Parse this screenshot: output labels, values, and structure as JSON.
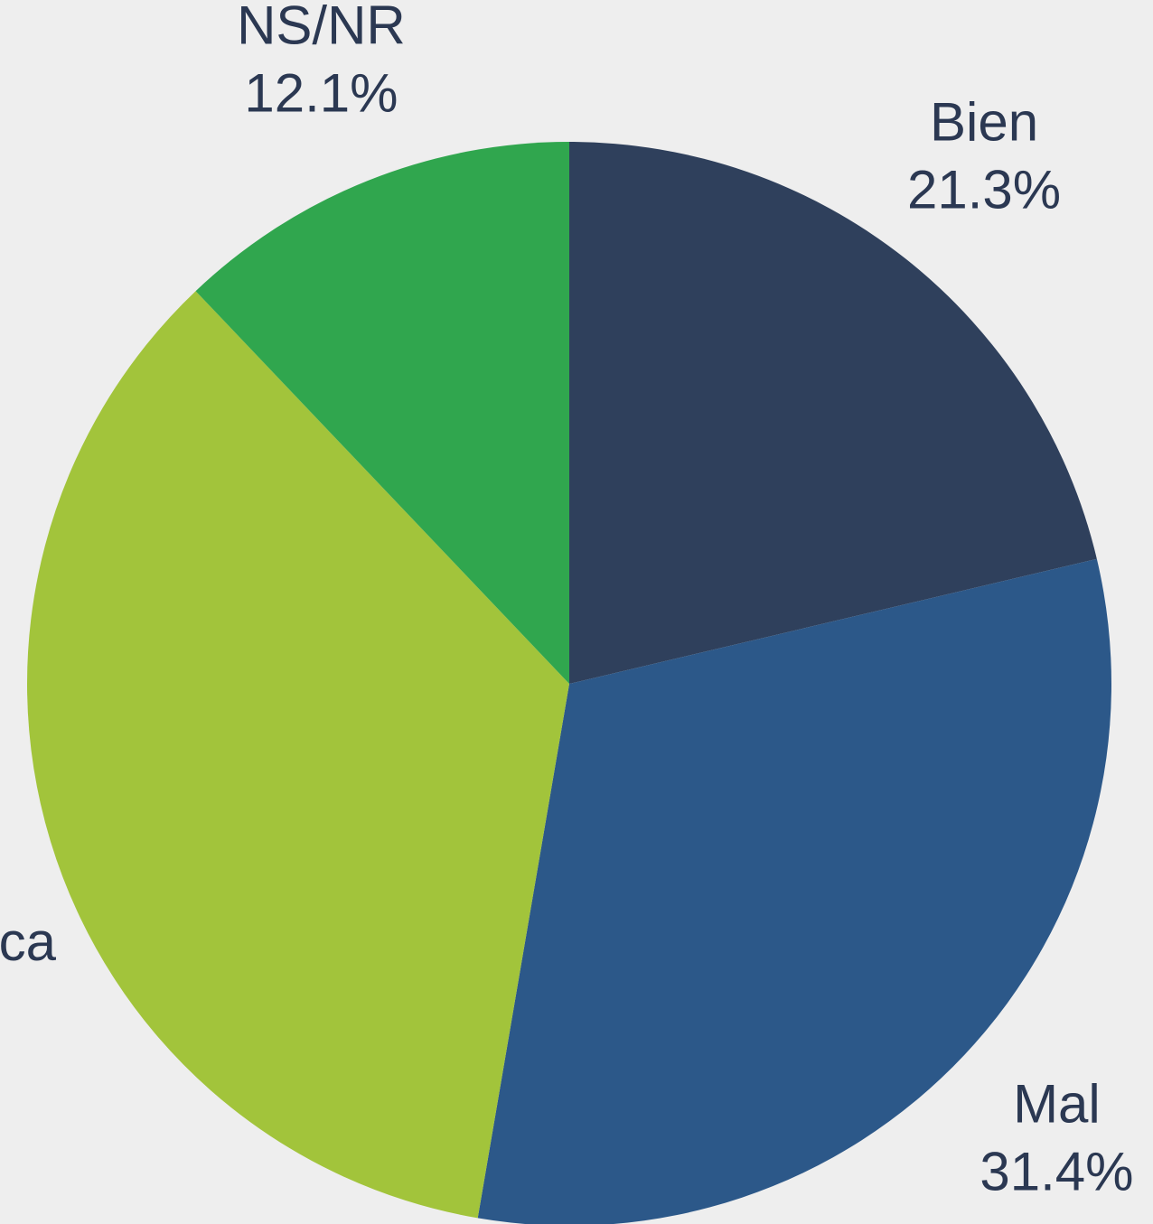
{
  "chart_data": {
    "type": "pie",
    "categories": [
      "Bien",
      "Mal",
      "ca",
      "NS/NR"
    ],
    "values": [
      21.3,
      31.4,
      35.2,
      12.1
    ],
    "value_labels": [
      "21.3%",
      "31.4%",
      null,
      "12.1%"
    ],
    "colors": [
      "#2f405c",
      "#2c5889",
      "#a2c43b",
      "#30a64e"
    ]
  }
}
